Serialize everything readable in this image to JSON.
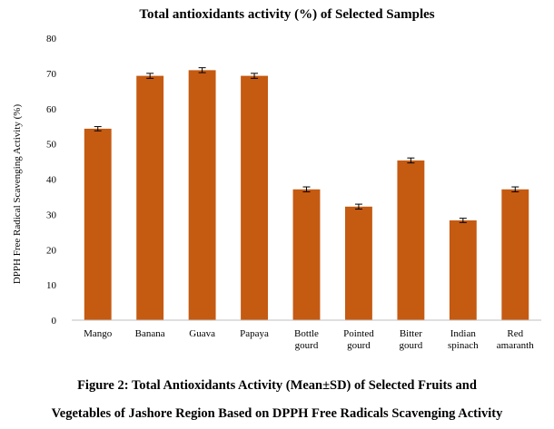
{
  "chart_data": {
    "type": "bar",
    "title": "Total antioxidants  activity (%) of Selected Samples",
    "xlabel": "",
    "ylabel": "DPPH Free Radical Scavenging Activity (%)",
    "ylim": [
      0,
      80
    ],
    "yticks": [
      0,
      10,
      20,
      30,
      40,
      50,
      60,
      70,
      80
    ],
    "grid": false,
    "legend": "none",
    "bar_color": "#c55a11",
    "categories": [
      [
        "Mango"
      ],
      [
        "Banana"
      ],
      [
        "Guava"
      ],
      [
        "Papaya"
      ],
      [
        "Bottle",
        "gourd"
      ],
      [
        "Pointed",
        "gourd"
      ],
      [
        "Bitter",
        "gourd"
      ],
      [
        "Indian",
        "spinach"
      ],
      [
        "Red",
        "amaranth"
      ]
    ],
    "values": [
      54.3,
      69.3,
      70.9,
      69.3,
      37.1,
      32.2,
      45.3,
      28.3,
      37.1
    ],
    "errors": [
      0.6,
      0.7,
      0.7,
      0.7,
      0.7,
      0.7,
      0.7,
      0.6,
      0.7
    ]
  },
  "caption": {
    "line1": "Figure 2: Total Antioxidants Activity (Mean±SD) of Selected Fruits and",
    "line2": "Vegetables of Jashore Region Based on DPPH Free Radicals Scavenging Activity"
  }
}
